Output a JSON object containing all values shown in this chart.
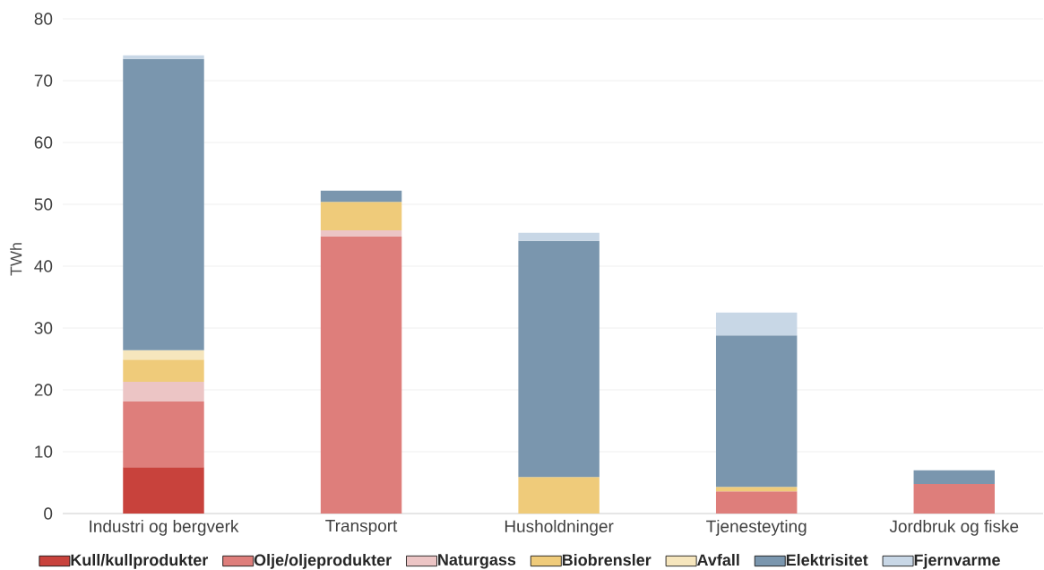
{
  "chart_data": {
    "type": "bar",
    "stacked": true,
    "ylabel": "TWh",
    "categories": [
      "Industri og bergverk",
      "Transport",
      "Husholdninger",
      "Tjenesteyting",
      "Jordbruk og fiske"
    ],
    "series": [
      {
        "name": "Kull/kullprodukter",
        "color": "#c8423c",
        "values": [
          7.5,
          null,
          null,
          null,
          null
        ]
      },
      {
        "name": "Olje/oljeprodukter",
        "color": "#de7e7b",
        "values": [
          10.6,
          44.8,
          null,
          3.6,
          4.8
        ]
      },
      {
        "name": "Naturgass",
        "color": "#ecc5c5",
        "values": [
          3.2,
          1.0,
          null,
          null,
          null
        ]
      },
      {
        "name": "Biobrensler",
        "color": "#efcb7a",
        "values": [
          3.6,
          4.6,
          5.9,
          0.7,
          null
        ]
      },
      {
        "name": "Avfall",
        "color": "#f6e6bd",
        "values": [
          1.5,
          null,
          null,
          null,
          null
        ]
      },
      {
        "name": "Elektrisitet",
        "color": "#7a96ae",
        "values": [
          47.1,
          1.8,
          38.2,
          24.5,
          2.2
        ]
      },
      {
        "name": "Fjernvarme",
        "color": "#c8d7e6",
        "values": [
          0.6,
          null,
          1.3,
          3.7,
          null
        ]
      }
    ],
    "ylim": [
      0,
      80
    ],
    "yticks": [
      0,
      10,
      20,
      30,
      40,
      50,
      60,
      70,
      80
    ],
    "grid": "y",
    "legend": "bottom"
  }
}
